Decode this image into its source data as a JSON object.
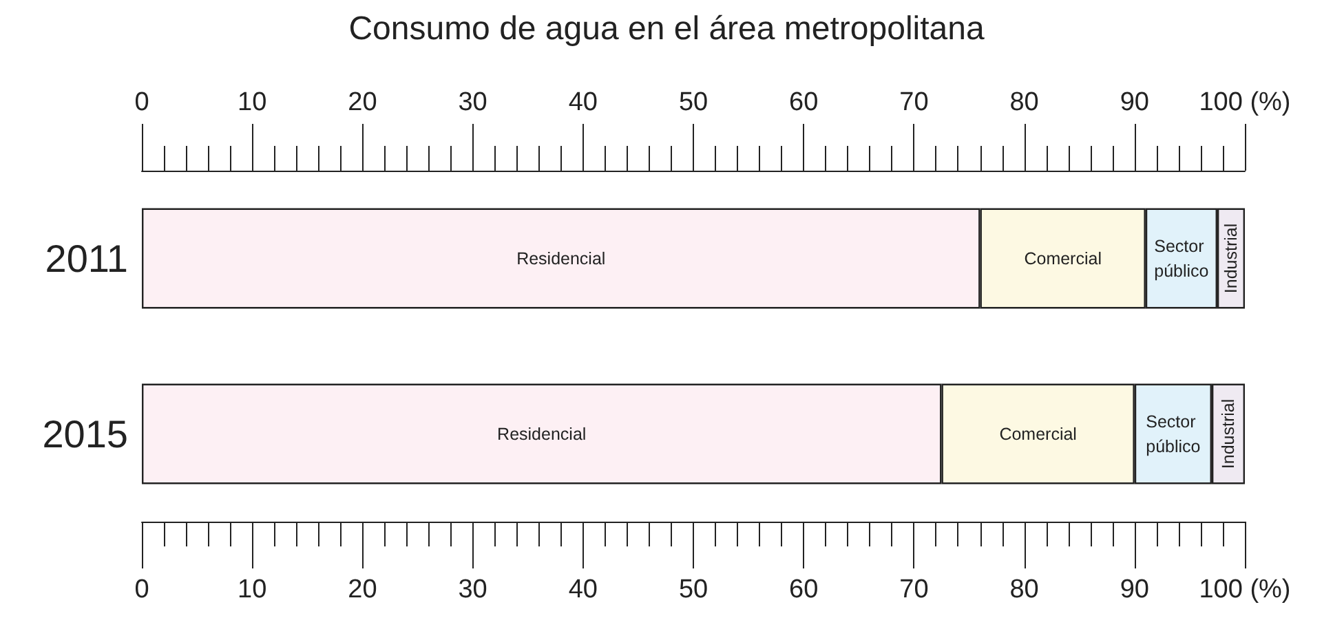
{
  "chart_data": {
    "type": "bar",
    "title": "Consumo de agua en el área metropolitana",
    "orientation": "horizontal",
    "stacked": true,
    "categories": [
      "2011",
      "2015"
    ],
    "series": [
      {
        "name": "Residencial",
        "color": "#fdf0f4",
        "values": [
          76,
          72.5
        ]
      },
      {
        "name": "Comercial",
        "color": "#fdf9e3",
        "values": [
          15,
          17.5
        ]
      },
      {
        "name": "Sector público",
        "color": "#e1f2fa",
        "values": [
          6.5,
          7
        ]
      },
      {
        "name": "Industrial",
        "color": "#efeaf2",
        "values": [
          2.5,
          3
        ]
      }
    ],
    "xlim": [
      0,
      100
    ],
    "xticks": [
      0,
      10,
      20,
      30,
      40,
      50,
      60,
      70,
      80,
      90,
      {
        "value": 100,
        "label": "100 (%)"
      }
    ],
    "x2lim": [
      0,
      100
    ],
    "x2ticks": [
      0,
      10,
      20,
      30,
      40,
      50,
      60,
      70,
      80,
      90,
      {
        "value": 100,
        "label": "100 (%)"
      }
    ]
  }
}
